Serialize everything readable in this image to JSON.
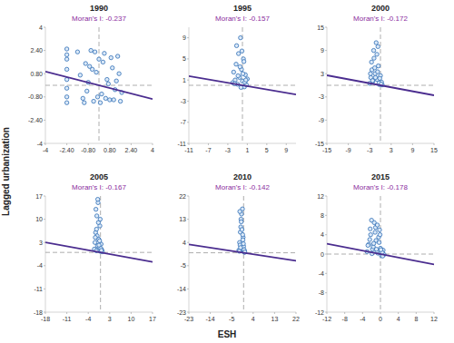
{
  "xlabel": "ESH",
  "ylabel": "Lagged urbanization",
  "chart_data": [
    {
      "type": "scatter",
      "title": "1990",
      "moran_i": {
        "value": -0.237,
        "label": "Moran's I: -0.237"
      },
      "xlim": [
        -4,
        4
      ],
      "ylim": [
        -4,
        4
      ],
      "xticks": [
        -4,
        {
          "value": -2.4,
          "label": "-2.40"
        },
        {
          "value": -0.8,
          "label": "-0.80"
        },
        {
          "value": 0.8,
          "label": "0.80"
        },
        {
          "value": 2.4,
          "label": "2.40"
        },
        4
      ],
      "yticks": [
        -4,
        {
          "value": -2.4,
          "label": "-2.40"
        },
        {
          "value": -0.8,
          "label": "-0.80"
        },
        {
          "value": 0.8,
          "label": "0.80"
        },
        {
          "value": 2.4,
          "label": "2.40"
        },
        4
      ],
      "series": [
        {
          "marker": "circle",
          "color": "#2f6db5",
          "x": [
            -2.4,
            -2.4,
            -2.4,
            -2.4,
            -2.4,
            -2.4,
            -2.4,
            -2.4,
            -1.6,
            -1.2,
            -1.0,
            -0.8,
            -0.6,
            -0.4,
            -0.2,
            0,
            0.2,
            0.4,
            0.6,
            0.8,
            1.0,
            1.2,
            1.4,
            1.6,
            -1.4,
            -0.9,
            -0.5,
            -0.1,
            0.3,
            0.7,
            1.1,
            1.5,
            -1.1,
            -0.3,
            0.5,
            0.9,
            1.3,
            1.7,
            -0.7,
            0.1
          ],
          "values": [
            2.5,
            1.8,
            1.1,
            0.4,
            -0.2,
            -0.8,
            -1.2,
            2.1,
            2.3,
            -0.9,
            1.5,
            0.2,
            2.4,
            -1.1,
            0.9,
            1.8,
            -0.6,
            2.2,
            0.4,
            -1.0,
            1.2,
            -0.3,
            2.0,
            -1.1,
            0.7,
            -0.4,
            1.1,
            -0.8,
            1.6,
            0.1,
            -1.0,
            0.8,
            -1.2,
            2.3,
            -0.9,
            1.9,
            0.3,
            -0.5,
            1.3,
            -1.2
          ]
        }
      ]
    },
    {
      "type": "scatter",
      "title": "1995",
      "moran_i": {
        "value": -0.157,
        "label": "Moran's I: -0.157"
      },
      "xlim": [
        -11,
        11
      ],
      "ylim": [
        -11,
        11
      ],
      "xticks": [
        -11,
        -7,
        -3,
        1,
        5,
        9
      ],
      "yticks": [
        -11,
        -7,
        -3,
        1,
        5,
        9
      ],
      "series": [
        {
          "marker": "circle",
          "color": "#2f6db5",
          "x": [
            -2,
            -1.8,
            -1.5,
            -1.3,
            -1,
            -0.8,
            -0.6,
            -0.4,
            -0.2,
            0,
            0.2,
            0.4,
            0.6,
            0.8,
            1,
            -1.2,
            -0.5,
            0.1,
            0.5,
            -0.9,
            -0.3,
            0.3,
            -1.6,
            0.7,
            -0.1
          ],
          "values": [
            0.5,
            2.5,
            1,
            4,
            0.2,
            6,
            1.5,
            9,
            3,
            0.8,
            5,
            -0.3,
            2,
            0.1,
            1.2,
            7.5,
            3.5,
            2.2,
            0.6,
            1.8,
            -0.4,
            4.5,
            0.3,
            1,
            6.5
          ]
        }
      ]
    },
    {
      "type": "scatter",
      "title": "2000",
      "moran_i": {
        "value": -0.172,
        "label": "Moran's I: -0.172"
      },
      "xlim": [
        -15,
        15
      ],
      "ylim": [
        -15,
        15
      ],
      "xticks": [
        -15,
        -9,
        -3,
        3,
        9,
        15
      ],
      "yticks": [
        -15,
        -9,
        -3,
        3,
        9,
        15
      ],
      "series": [
        {
          "marker": "circle",
          "color": "#2f6db5",
          "x": [
            -3,
            -2.7,
            -2.4,
            -2.1,
            -1.8,
            -1.5,
            -1.2,
            -0.9,
            -0.6,
            -0.3,
            0,
            0.3,
            0.5,
            -2.5,
            -1.9,
            -1.4,
            -0.8,
            -0.4,
            -2.2,
            -1.0,
            -0.2,
            -1.6,
            0.2,
            -2.8,
            -0.7
          ],
          "values": [
            0.5,
            2,
            4,
            1,
            7,
            3,
            11,
            1.5,
            5,
            0.2,
            2.5,
            0.8,
            0.1,
            6,
            9,
            2,
            3.5,
            0.6,
            1.2,
            8,
            1.8,
            4.5,
            0.3,
            3,
            10
          ]
        }
      ]
    },
    {
      "type": "scatter",
      "title": "2005",
      "moran_i": {
        "value": -0.167,
        "label": "Moran's I: -0.167"
      },
      "xlim": [
        -18,
        17
      ],
      "ylim": [
        -18,
        17
      ],
      "xticks": [
        -18,
        -11,
        -4,
        3,
        10,
        17
      ],
      "yticks": [
        -18,
        -11,
        -4,
        3,
        10,
        17
      ],
      "series": [
        {
          "marker": "circle",
          "color": "#2f6db5",
          "x": [
            -2,
            -1.8,
            -1.6,
            -1.4,
            -1.2,
            -1,
            -0.8,
            -0.6,
            -0.4,
            -0.2,
            0,
            0.2,
            0.4,
            0.6,
            -1.5,
            -1.1,
            -0.7,
            -0.3,
            0.1,
            -1.3,
            -0.9,
            -0.5,
            0.3,
            -1.7,
            -0.1
          ],
          "values": [
            1,
            3,
            6,
            0.5,
            11,
            2,
            15,
            4,
            1.5,
            8,
            0.3,
            2.5,
            0.8,
            0.2,
            13,
            5,
            9,
            3.5,
            1.2,
            7,
            16,
            2.2,
            0.6,
            4.5,
            10
          ]
        }
      ]
    },
    {
      "type": "scatter",
      "title": "2010",
      "moran_i": {
        "value": -0.142,
        "label": "Moran's I: -0.142"
      },
      "xlim": [
        -23,
        22
      ],
      "ylim": [
        -23,
        22
      ],
      "xticks": [
        -23,
        -14,
        -5,
        4,
        13,
        22
      ],
      "yticks": [
        -23,
        -14,
        -5,
        4,
        13,
        22
      ],
      "series": [
        {
          "marker": "circle",
          "color": "#2f6db5",
          "x": [
            -2,
            -1.7,
            -1.4,
            -1.1,
            -0.8,
            -0.5,
            -0.2,
            0.1,
            0.4,
            -1.5,
            -1.2,
            -0.9,
            -0.6,
            -0.3,
            0,
            0.3,
            -1.8,
            -1.0,
            -0.4,
            0.2,
            -0.7,
            -1.3,
            0.5,
            -0.1,
            -1.6
          ],
          "values": [
            1,
            4,
            8,
            13,
            2,
            17,
            6,
            0.5,
            0.2,
            3,
            10,
            15,
            1.5,
            5,
            2.5,
            0.8,
            0.6,
            12,
            7,
            1.2,
            9,
            2,
            0.3,
            3.5,
            16
          ]
        }
      ]
    },
    {
      "type": "scatter",
      "title": "2015",
      "moran_i": {
        "value": -0.178,
        "label": "Moran's I: -0.178"
      },
      "xlim": [
        -12,
        12
      ],
      "ylim": [
        -12,
        12
      ],
      "xticks": [
        -12,
        -8,
        -4,
        0,
        4,
        8,
        12
      ],
      "yticks": [
        -12,
        -8,
        -4,
        0,
        4,
        8,
        12
      ],
      "series": [
        {
          "marker": "circle",
          "color": "#2f6db5",
          "x": [
            -3,
            -2.6,
            -2.2,
            -1.8,
            -1.4,
            -1,
            -0.6,
            -0.2,
            0.2,
            0.6,
            0.8,
            -2.4,
            -2,
            -1.6,
            -1.2,
            -0.8,
            -0.4,
            0,
            0.4,
            -2.8,
            -1.1,
            -0.3,
            0.5,
            -1.9,
            -0.7,
            -1.5,
            0.1,
            -2.3,
            -0.1,
            -0.9
          ],
          "values": [
            0.5,
            2,
            4,
            1,
            6.5,
            2.8,
            0.2,
            5,
            -0.3,
            0.8,
            -0.1,
            3,
            7,
            1.5,
            4.5,
            0.6,
            3.5,
            1.2,
            0.3,
            1.8,
            5.5,
            2.4,
            -0.4,
            0.1,
            6,
            2.2,
            0.9,
            5.2,
            4,
            1
          ]
        }
      ]
    }
  ]
}
